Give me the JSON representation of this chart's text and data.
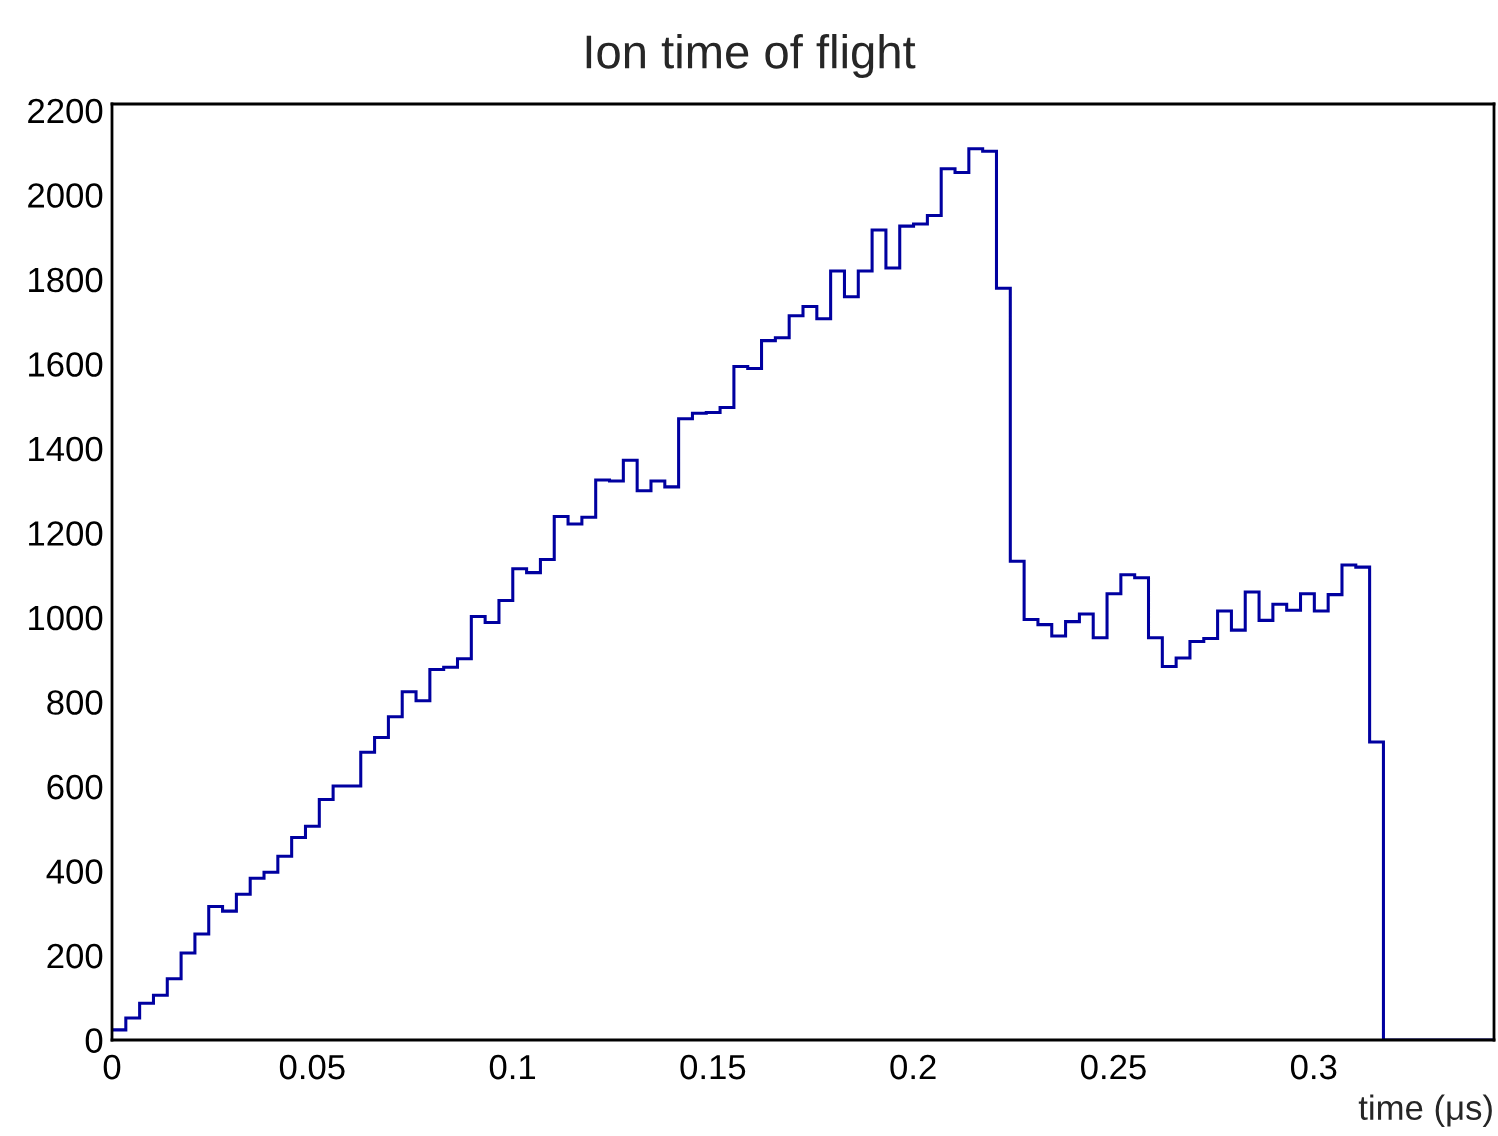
{
  "chart_data": {
    "type": "histogram",
    "title": "Ion time of flight",
    "xlabel": "time (μs)",
    "bins": [
      0,
      0.00345,
      0.0069,
      0.01035,
      0.0138,
      0.01725,
      0.0207,
      0.02415,
      0.0276,
      0.03105,
      0.0345,
      0.03795,
      0.0414,
      0.04485,
      0.0483,
      0.05175,
      0.0552,
      0.05865,
      0.0621,
      0.06555,
      0.069,
      0.07245,
      0.0759,
      0.07935,
      0.0828,
      0.08625,
      0.0897,
      0.09315,
      0.0966,
      0.10005,
      0.1035,
      0.10695,
      0.1104,
      0.11385,
      0.1173,
      0.12075,
      0.1242,
      0.12765,
      0.1311,
      0.13455,
      0.138,
      0.14145,
      0.1449,
      0.14835,
      0.1518,
      0.15525,
      0.1587,
      0.16215,
      0.1656,
      0.16905,
      0.1725,
      0.17595,
      0.1794,
      0.18285,
      0.1863,
      0.18975,
      0.1932,
      0.19665,
      0.2001,
      0.20355,
      0.207,
      0.21045,
      0.2139,
      0.21735,
      0.2208,
      0.22425,
      0.2277,
      0.23115,
      0.2346,
      0.23805,
      0.2415,
      0.24495,
      0.2484,
      0.25185,
      0.2553,
      0.25875,
      0.2622,
      0.26565,
      0.2691,
      0.27255,
      0.276,
      0.27945,
      0.2829,
      0.28635,
      0.2898,
      0.29325,
      0.2967,
      0.30015,
      0.3036,
      0.30705,
      0.3105,
      0.31395,
      0.3174,
      0.32085,
      0.3243,
      0.32775,
      0.3312,
      0.33465,
      0.3381,
      0.34155,
      0.345
    ],
    "values": [
      24,
      52,
      87,
      106,
      145,
      206,
      251,
      316,
      305,
      345,
      383,
      397,
      435,
      479,
      506,
      569,
      601,
      601,
      681,
      716,
      765,
      824,
      803,
      877,
      882,
      902,
      1002,
      988,
      1040,
      1115,
      1106,
      1137,
      1239,
      1221,
      1237,
      1325,
      1323,
      1372,
      1300,
      1323,
      1309,
      1470,
      1483,
      1485,
      1497,
      1594,
      1589,
      1655,
      1662,
      1714,
      1736,
      1707,
      1820,
      1759,
      1820,
      1917,
      1827,
      1926,
      1931,
      1951,
      2062,
      2053,
      2109,
      2103,
      1779,
      1133,
      995,
      983,
      956,
      990,
      1008,
      952,
      1056,
      1101,
      1094,
      952,
      884,
      904,
      943,
      950,
      1015,
      970,
      1060,
      993,
      1031,
      1017,
      1056,
      1015,
      1054,
      1124,
      1119,
      705,
      0,
      0,
      0,
      0,
      0,
      0,
      0,
      0
    ],
    "color": "#0000a0",
    "xlim": [
      0,
      0.345
    ],
    "ylim": [
      0,
      2215
    ],
    "xticks": [
      0,
      0.05,
      0.1,
      0.15,
      0.2,
      0.25,
      0.3
    ],
    "yticks": [
      0,
      200,
      400,
      600,
      800,
      1000,
      1200,
      1400,
      1600,
      1800,
      2000,
      2200
    ],
    "grid": false
  }
}
